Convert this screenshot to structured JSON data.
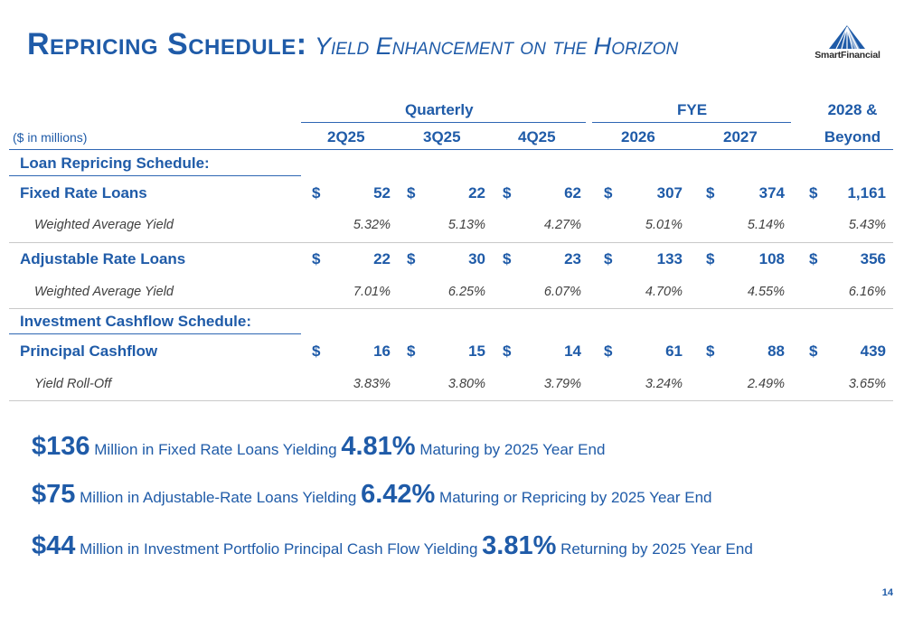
{
  "title": {
    "main": "Repricing Schedule:",
    "sub": "Yield Enhancement on the Horizon"
  },
  "logo": {
    "word": "SmartFinancial",
    "icon": "mountain-logo-icon"
  },
  "table": {
    "group_headers": {
      "quarterly": "Quarterly",
      "fye": "FYE",
      "beyond_top": "2028 &"
    },
    "units_note": "($ in millions)",
    "columns": [
      "2Q25",
      "3Q25",
      "4Q25",
      "2026",
      "2027",
      "Beyond"
    ],
    "loan_section": "Loan Repricing Schedule:",
    "investment_section": "Investment Cashflow Schedule:",
    "currency": "$",
    "rows": [
      {
        "label": "Fixed Rate Loans",
        "values": [
          "52",
          "22",
          "62",
          "307",
          "374",
          "1,161"
        ]
      },
      {
        "label": "Weighted Average Yield",
        "values": [
          "5.32%",
          "5.13%",
          "4.27%",
          "5.01%",
          "5.14%",
          "5.43%"
        ]
      },
      {
        "label": "Adjustable Rate Loans",
        "values": [
          "22",
          "30",
          "23",
          "133",
          "108",
          "356"
        ]
      },
      {
        "label": "Weighted Average Yield",
        "values": [
          "7.01%",
          "6.25%",
          "6.07%",
          "4.70%",
          "4.55%",
          "6.16%"
        ]
      },
      {
        "label": "Principal Cashflow",
        "values": [
          "16",
          "15",
          "14",
          "61",
          "88",
          "439"
        ]
      },
      {
        "label": "Yield Roll-Off",
        "values": [
          "3.83%",
          "3.80%",
          "3.79%",
          "3.24%",
          "2.49%",
          "3.65%"
        ]
      }
    ]
  },
  "summary": [
    {
      "amount": "$136",
      "text1": "Million in Fixed Rate Loans Yielding",
      "pct": "4.81%",
      "text2": "Maturing by 2025 Year End"
    },
    {
      "amount": "$75",
      "text1": "Million in Adjustable-Rate Loans Yielding",
      "pct": "6.42%",
      "text2": "Maturing or Repricing by 2025 Year End"
    },
    {
      "amount": "$44",
      "text1": "Million in Investment Portfolio Principal Cash Flow Yielding",
      "pct": "3.81%",
      "text2": "Returning by 2025 Year End"
    }
  ],
  "page_number": "14"
}
